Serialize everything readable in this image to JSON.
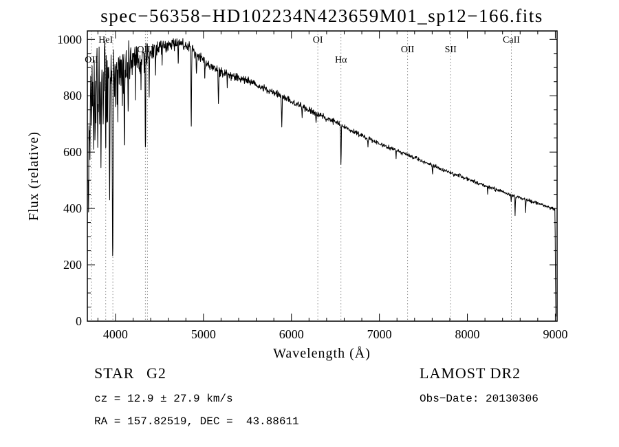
{
  "title": "spec−56358−HD102234N423659M01_sp12−166.fits",
  "chart_data": {
    "type": "line",
    "title": "spec−56358−HD102234N423659M01_sp12−166.fits",
    "xlabel": "Wavelength (Å)",
    "ylabel": "Flux (relative)",
    "xlim": [
      3680,
      9020
    ],
    "ylim": [
      0,
      1030
    ],
    "xticks": [
      4000,
      5000,
      6000,
      7000,
      8000,
      9000
    ],
    "yticks": [
      0,
      200,
      400,
      600,
      800,
      1000
    ],
    "x_minor_step": 200,
    "y_minor_step": 50,
    "grid": false,
    "line_color": "#000000",
    "marker_line_color": "#8a8a8a",
    "spectral_lines": [
      {
        "label": "OII",
        "wavelength": 3727,
        "row": 2
      },
      {
        "label": "HeI",
        "wavelength": 3889,
        "row": 0
      },
      {
        "label": "",
        "wavelength": 3970,
        "row": 0
      },
      {
        "label": "OIII",
        "wavelength": 4340,
        "row": 1
      },
      {
        "label": "",
        "wavelength": 4363,
        "row": 1
      },
      {
        "label": "OI",
        "wavelength": 6300,
        "row": 0
      },
      {
        "label": "Hα",
        "wavelength": 6563,
        "row": 2
      },
      {
        "label": "OII",
        "wavelength": 7320,
        "row": 1
      },
      {
        "label": "SII",
        "wavelength": 7810,
        "row": 1
      },
      {
        "label": "CaII",
        "wavelength": 8500,
        "row": 0
      }
    ],
    "continuum_points": [
      [
        3690,
        430
      ],
      [
        3700,
        700
      ],
      [
        3720,
        790
      ],
      [
        3760,
        830
      ],
      [
        3820,
        860
      ],
      [
        3880,
        880
      ],
      [
        3940,
        885
      ],
      [
        4000,
        895
      ],
      [
        4080,
        905
      ],
      [
        4160,
        918
      ],
      [
        4260,
        935
      ],
      [
        4360,
        950
      ],
      [
        4460,
        966
      ],
      [
        4560,
        978
      ],
      [
        4660,
        988
      ],
      [
        4760,
        985
      ],
      [
        4860,
        968
      ],
      [
        4960,
        938
      ],
      [
        5060,
        908
      ],
      [
        5160,
        892
      ],
      [
        5260,
        878
      ],
      [
        5360,
        868
      ],
      [
        5460,
        858
      ],
      [
        5560,
        845
      ],
      [
        5660,
        830
      ],
      [
        5760,
        816
      ],
      [
        5860,
        802
      ],
      [
        5960,
        786
      ],
      [
        6060,
        770
      ],
      [
        6160,
        754
      ],
      [
        6260,
        740
      ],
      [
        6360,
        726
      ],
      [
        6460,
        712
      ],
      [
        6560,
        696
      ],
      [
        6660,
        680
      ],
      [
        6760,
        665
      ],
      [
        6860,
        651
      ],
      [
        6960,
        637
      ],
      [
        7060,
        623
      ],
      [
        7160,
        610
      ],
      [
        7260,
        597
      ],
      [
        7360,
        584
      ],
      [
        7460,
        571
      ],
      [
        7560,
        558
      ],
      [
        7660,
        545
      ],
      [
        7760,
        533
      ],
      [
        7860,
        521
      ],
      [
        7960,
        509
      ],
      [
        8060,
        497
      ],
      [
        8160,
        485
      ],
      [
        8260,
        474
      ],
      [
        8360,
        463
      ],
      [
        8460,
        452
      ],
      [
        8560,
        442
      ],
      [
        8660,
        432
      ],
      [
        8760,
        422
      ],
      [
        8860,
        412
      ],
      [
        8950,
        402
      ],
      [
        8995,
        396
      ],
      [
        9000,
        250
      ],
      [
        9004,
        30
      ],
      [
        9008,
        6
      ]
    ],
    "absorption_features": [
      [
        3727,
        700,
        5
      ],
      [
        3750,
        640,
        5
      ],
      [
        3770,
        690,
        4
      ],
      [
        3798,
        600,
        5
      ],
      [
        3820,
        700,
        4
      ],
      [
        3835,
        545,
        5
      ],
      [
        3860,
        700,
        4
      ],
      [
        3889,
        615,
        5
      ],
      [
        3910,
        705,
        4
      ],
      [
        3933,
        430,
        6
      ],
      [
        3968,
        232,
        8
      ],
      [
        4026,
        715,
        4
      ],
      [
        4077,
        765,
        4
      ],
      [
        4101,
        625,
        6
      ],
      [
        4144,
        745,
        4
      ],
      [
        4226,
        775,
        4
      ],
      [
        4290,
        830,
        4
      ],
      [
        4340,
        618,
        6
      ],
      [
        4383,
        795,
        4
      ],
      [
        4455,
        875,
        4
      ],
      [
        4530,
        905,
        4
      ],
      [
        4713,
        915,
        4
      ],
      [
        4861,
        692,
        6
      ],
      [
        4920,
        880,
        4
      ],
      [
        5015,
        862,
        4
      ],
      [
        5170,
        772,
        6
      ],
      [
        5270,
        825,
        4
      ],
      [
        5890,
        693,
        6
      ],
      [
        6122,
        725,
        4
      ],
      [
        6280,
        705,
        4
      ],
      [
        6563,
        556,
        6
      ],
      [
        6870,
        618,
        5
      ],
      [
        7190,
        578,
        4
      ],
      [
        7605,
        522,
        5
      ],
      [
        8230,
        452,
        4
      ],
      [
        8498,
        425,
        5
      ],
      [
        8542,
        375,
        5
      ],
      [
        8662,
        385,
        5
      ]
    ],
    "noise_envelope": [
      [
        3690,
        82
      ],
      [
        3900,
        80
      ],
      [
        4000,
        62
      ],
      [
        4150,
        45
      ],
      [
        4300,
        30
      ],
      [
        4500,
        20
      ],
      [
        4800,
        15
      ],
      [
        5200,
        12
      ],
      [
        5600,
        10
      ],
      [
        6000,
        9
      ],
      [
        6500,
        7
      ],
      [
        7000,
        6
      ],
      [
        8000,
        5
      ],
      [
        9008,
        4
      ]
    ],
    "noise_seed": 20130306,
    "sample_step_angstrom": 4
  },
  "annotations": {
    "object_class": "STAR",
    "subclass": "G2",
    "survey": "LAMOST DR2",
    "cz": "cz = 12.9 ± 27.9 km/s",
    "obs_date": "Obs−Date: 20130306",
    "ra_dec": "RA = 157.82519, DEC =  43.88611"
  }
}
